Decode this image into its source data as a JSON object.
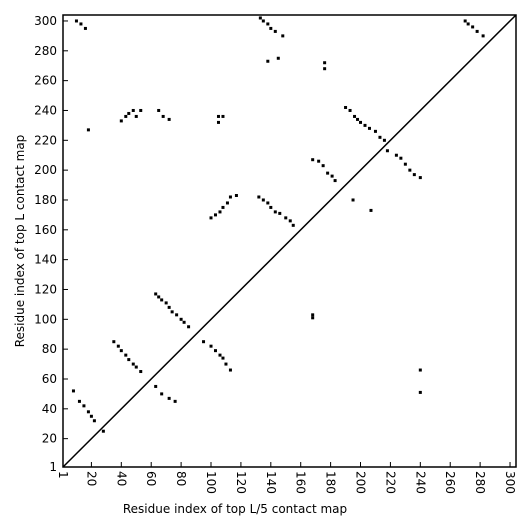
{
  "chart_data": {
    "type": "scatter",
    "x_label": "Residue index of top L/5 contact map",
    "y_label": "Residue index of top L contact map",
    "color": "#000000",
    "xlim": [
      1,
      304
    ],
    "ylim": [
      1,
      304
    ],
    "xticks": [
      1,
      20,
      40,
      60,
      80,
      100,
      120,
      140,
      160,
      180,
      200,
      220,
      240,
      260,
      280,
      300
    ],
    "yticks": [
      1,
      20,
      40,
      60,
      80,
      100,
      120,
      140,
      160,
      180,
      200,
      220,
      240,
      260,
      280,
      300
    ],
    "grid": false,
    "x": [
      10,
      13,
      16,
      133,
      135,
      138,
      140,
      143,
      148,
      138,
      145,
      176,
      176,
      270,
      272,
      275,
      278,
      282,
      40,
      43,
      45,
      48,
      50,
      53,
      65,
      68,
      72,
      18,
      105,
      105,
      108,
      190,
      193,
      196,
      198,
      200,
      203,
      206,
      210,
      213,
      216,
      218,
      224,
      227,
      230,
      233,
      236,
      240,
      168,
      172,
      175,
      178,
      181,
      183,
      195,
      207,
      100,
      103,
      106,
      108,
      111,
      113,
      117,
      132,
      135,
      138,
      140,
      143,
      146,
      150,
      153,
      155,
      8,
      12,
      15,
      18,
      20,
      22,
      28,
      35,
      38,
      40,
      43,
      45,
      48,
      50,
      53,
      63,
      65,
      67,
      70,
      72,
      74,
      77,
      80,
      82,
      85,
      63,
      67,
      72,
      76,
      95,
      100,
      103,
      106,
      108,
      110,
      113,
      168,
      168,
      240,
      240
    ],
    "values": [
      300,
      298,
      295,
      302,
      300,
      298,
      295,
      293,
      290,
      273,
      275,
      272,
      268,
      300,
      298,
      296,
      293,
      290,
      233,
      236,
      238,
      240,
      236,
      240,
      240,
      236,
      234,
      227,
      232,
      236,
      236,
      242,
      240,
      236,
      234,
      232,
      230,
      228,
      226,
      222,
      220,
      213,
      210,
      208,
      204,
      200,
      197,
      195,
      207,
      206,
      203,
      198,
      196,
      193,
      180,
      173,
      168,
      170,
      172,
      175,
      178,
      182,
      183,
      182,
      180,
      178,
      175,
      172,
      171,
      168,
      166,
      163,
      52,
      45,
      42,
      38,
      35,
      32,
      25,
      85,
      82,
      79,
      76,
      73,
      70,
      68,
      65,
      117,
      115,
      113,
      111,
      108,
      105,
      103,
      100,
      98,
      95,
      55,
      50,
      47,
      45,
      85,
      82,
      79,
      76,
      74,
      70,
      66,
      103,
      101,
      66,
      51
    ]
  }
}
